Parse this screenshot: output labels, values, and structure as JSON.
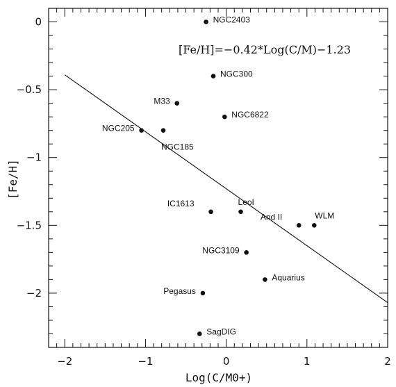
{
  "chart_data": {
    "type": "scatter",
    "title": "",
    "xlabel": "Log(C/M0+)",
    "ylabel": "[Fe/H]",
    "xlim": [
      -2.2,
      2.0
    ],
    "ylim": [
      -2.4,
      0.1
    ],
    "xticks": [
      -2,
      -1,
      0,
      1,
      2
    ],
    "xtick_labels": [
      "−2",
      "−1",
      "0",
      "1",
      "2"
    ],
    "yticks": [
      0,
      -0.5,
      -1,
      -1.5,
      -2
    ],
    "ytick_labels": [
      "0",
      "−0.5",
      "−1",
      "−1.5",
      "−2"
    ],
    "grid": false,
    "annotation": "[Fe/H]=−0.42*Log(C/M)−1.23",
    "fit_line": {
      "slope": -0.42,
      "intercept": -1.23,
      "x_range": [
        -2.0,
        2.0
      ]
    },
    "points": [
      {
        "name": "NGC2403",
        "x": -0.25,
        "y": 0.0,
        "label_pos": "right"
      },
      {
        "name": "NGC300",
        "x": -0.16,
        "y": -0.4,
        "label_pos": "right"
      },
      {
        "name": "M33",
        "x": -0.61,
        "y": -0.6,
        "label_pos": "left"
      },
      {
        "name": "NGC6822",
        "x": -0.02,
        "y": -0.7,
        "label_pos": "right"
      },
      {
        "name": "NGC205",
        "x": -1.05,
        "y": -0.8,
        "label_pos": "left"
      },
      {
        "name": "NGC185",
        "x": -0.78,
        "y": -0.8,
        "label_pos": "below"
      },
      {
        "name": "IC1613",
        "x": -0.19,
        "y": -1.4,
        "label_pos": "upper-left"
      },
      {
        "name": "LeoI",
        "x": 0.18,
        "y": -1.4,
        "label_pos": "above"
      },
      {
        "name": "And II",
        "x": 0.9,
        "y": -1.5,
        "label_pos": "upper-left"
      },
      {
        "name": "WLM",
        "x": 1.09,
        "y": -1.5,
        "label_pos": "upper-right"
      },
      {
        "name": "NGC3109",
        "x": 0.25,
        "y": -1.7,
        "label_pos": "left"
      },
      {
        "name": "Aquarius",
        "x": 0.48,
        "y": -1.9,
        "label_pos": "right"
      },
      {
        "name": "Pegasus",
        "x": -0.29,
        "y": -2.0,
        "label_pos": "left"
      },
      {
        "name": "SagDIG",
        "x": -0.33,
        "y": -2.3,
        "label_pos": "right"
      }
    ]
  }
}
